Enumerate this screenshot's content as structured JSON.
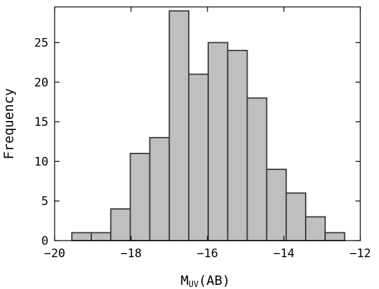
{
  "chart_data": {
    "type": "bar",
    "subtype": "histogram",
    "xlabel_main": "M",
    "xlabel_sub": "UV",
    "xlabel_suffix": "(AB)",
    "ylabel": "Frequency",
    "xlim": [
      -20,
      -12
    ],
    "ylim": [
      0,
      29.5
    ],
    "xticks": [
      -20,
      -18,
      -16,
      -14,
      -12
    ],
    "xtick_labels": [
      "−20",
      "−18",
      "−16",
      "−14",
      "−12"
    ],
    "yticks": [
      0,
      5,
      10,
      15,
      20,
      25
    ],
    "ytick_labels": [
      "0",
      "5",
      "10",
      "15",
      "20",
      "25"
    ],
    "bin_edges": [
      -19.55,
      -19.04,
      -18.53,
      -18.02,
      -17.51,
      -17.0,
      -16.49,
      -15.98,
      -15.47,
      -14.96,
      -14.45,
      -13.94,
      -13.43,
      -12.92,
      -12.41
    ],
    "values": [
      1,
      1,
      4,
      11,
      13,
      29,
      21,
      25,
      24,
      18,
      9,
      6,
      3,
      1
    ],
    "bar_color": "#bfbfbf",
    "edge_color": "#3a3a3a",
    "grid": false
  }
}
